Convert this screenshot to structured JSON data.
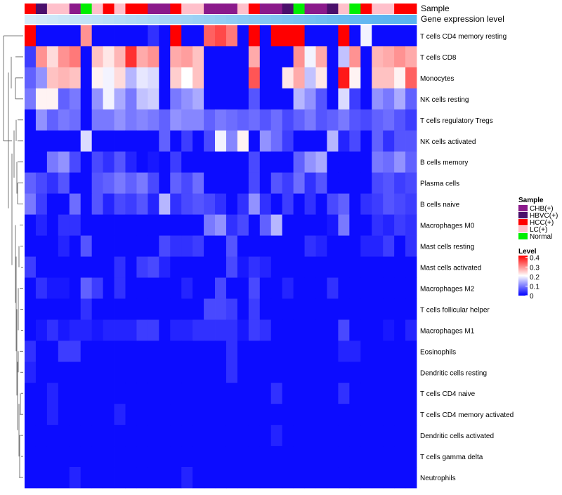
{
  "chart_data": {
    "type": "heatmap",
    "title": "",
    "annotation_tracks": [
      "Sample",
      "Gene expression level"
    ],
    "legend_sample": {
      "title": "Sample",
      "entries": [
        {
          "label": "CHB(+)",
          "color": "#8b1a8b"
        },
        {
          "label": "HBVC(+)",
          "color": "#4b0f6b"
        },
        {
          "label": "HCC(+)",
          "color": "#ff0000"
        },
        {
          "label": "LC(+)",
          "color": "#ffc0cb"
        },
        {
          "label": "Normal",
          "color": "#00ee00"
        }
      ]
    },
    "legend_level": {
      "title": "Level",
      "ticks": [
        "0.4",
        "0.3",
        "0.2",
        "0.1",
        "0"
      ],
      "tick_values": [
        0.4,
        0.3,
        0.2,
        0.1,
        0
      ],
      "range": [
        0,
        0.42
      ],
      "colors": [
        "#0000ff",
        "#ffffff",
        "#ff0000"
      ]
    },
    "sample_groups": [
      "HCC(+)",
      "HBVC(+)",
      "LC(+)",
      "LC(+)",
      "CHB(+)",
      "Normal",
      "LC(+)",
      "HCC(+)",
      "LC(+)",
      "HCC(+)",
      "HCC(+)",
      "CHB(+)",
      "CHB(+)",
      "HCC(+)",
      "LC(+)",
      "LC(+)",
      "CHB(+)",
      "CHB(+)",
      "CHB(+)",
      "LC(+)",
      "HCC(+)",
      "CHB(+)",
      "CHB(+)",
      "HBVC(+)",
      "Normal",
      "CHB(+)",
      "CHB(+)",
      "HBVC(+)",
      "LC(+)",
      "Normal",
      "HCC(+)",
      "LC(+)",
      "LC(+)",
      "HCC(+)",
      "HCC(+)"
    ],
    "expression_track": [
      0.05,
      0.08,
      0.11,
      0.14,
      0.17,
      0.2,
      0.23,
      0.26,
      0.29,
      0.32,
      0.35,
      0.38,
      0.41,
      0.44,
      0.47,
      0.5,
      0.53,
      0.56,
      0.59,
      0.62,
      0.65,
      0.68,
      0.71,
      0.74,
      0.77,
      0.8,
      0.83,
      0.86,
      0.89,
      0.92,
      0.95,
      0.97,
      0.98,
      0.99,
      1.0
    ],
    "rows": [
      "T cells CD4 memory resting",
      "T cells CD8",
      "Monocytes",
      "NK cells resting",
      "T cells regulatory  Tregs",
      "NK cells activated",
      "B cells memory",
      "Plasma cells",
      "B cells naive",
      "Macrophages M0",
      "Mast cells resting",
      "Mast cells activated",
      "Macrophages M2",
      "T cells follicular helper",
      "Macrophages M1",
      "Eosinophils",
      "Dendritic cells resting",
      "T cells CD4 naive",
      "T cells CD4 memory activated",
      "Dendritic cells activated",
      "T cells gamma delta",
      "Neutrophils"
    ],
    "values": [
      [
        0.42,
        0.01,
        0.01,
        0.01,
        0.01,
        0.3,
        0.01,
        0.01,
        0.01,
        0.01,
        0.01,
        0.04,
        0.01,
        0.42,
        0.01,
        0.01,
        0.34,
        0.36,
        0.32,
        0.01,
        0.42,
        0.01,
        0.42,
        0.42,
        0.42,
        0.01,
        0.01,
        0.01,
        0.42,
        0.01,
        0.2,
        0.01,
        0.01,
        0.01,
        0.01
      ],
      [
        0.05,
        0.3,
        0.24,
        0.3,
        0.32,
        0.01,
        0.26,
        0.23,
        0.27,
        0.38,
        0.28,
        0.3,
        0.01,
        0.28,
        0.29,
        0.26,
        0.01,
        0.01,
        0.01,
        0.01,
        0.28,
        0.01,
        0.01,
        0.01,
        0.3,
        0.2,
        0.28,
        0.01,
        0.16,
        0.3,
        0.01,
        0.27,
        0.28,
        0.3,
        0.28
      ],
      [
        0.08,
        0.12,
        0.26,
        0.27,
        0.26,
        0.01,
        0.22,
        0.2,
        0.24,
        0.15,
        0.19,
        0.18,
        0.01,
        0.25,
        0.21,
        0.26,
        0.01,
        0.01,
        0.01,
        0.01,
        0.35,
        0.01,
        0.01,
        0.23,
        0.28,
        0.16,
        0.23,
        0.01,
        0.4,
        0.22,
        0.01,
        0.26,
        0.26,
        0.22,
        0.34
      ],
      [
        0.1,
        0.22,
        0.22,
        0.08,
        0.1,
        0.01,
        0.12,
        0.2,
        0.14,
        0.1,
        0.16,
        0.17,
        0.01,
        0.1,
        0.12,
        0.14,
        0.01,
        0.01,
        0.01,
        0.01,
        0.07,
        0.01,
        0.01,
        0.01,
        0.15,
        0.12,
        0.07,
        0.01,
        0.18,
        0.05,
        0.01,
        0.12,
        0.1,
        0.14,
        0.08
      ],
      [
        0.01,
        0.12,
        0.08,
        0.1,
        0.09,
        0.01,
        0.1,
        0.1,
        0.12,
        0.1,
        0.11,
        0.1,
        0.08,
        0.12,
        0.11,
        0.11,
        0.08,
        0.1,
        0.09,
        0.08,
        0.09,
        0.07,
        0.09,
        0.06,
        0.08,
        0.1,
        0.07,
        0.08,
        0.1,
        0.07,
        0.06,
        0.08,
        0.09,
        0.07,
        0.05
      ],
      [
        0.01,
        0.01,
        0.01,
        0.01,
        0.01,
        0.18,
        0.01,
        0.01,
        0.01,
        0.01,
        0.01,
        0.01,
        0.08,
        0.01,
        0.05,
        0.01,
        0.06,
        0.2,
        0.11,
        0.22,
        0.01,
        0.12,
        0.09,
        0.05,
        0.01,
        0.01,
        0.01,
        0.15,
        0.03,
        0.06,
        0.01,
        0.08,
        0.04,
        0.07,
        0.07
      ],
      [
        0.01,
        0.01,
        0.1,
        0.12,
        0.06,
        0.01,
        0.06,
        0.04,
        0.07,
        0.03,
        0.01,
        0.02,
        0.01,
        0.05,
        0.01,
        0.01,
        0.01,
        0.01,
        0.01,
        0.01,
        0.06,
        0.01,
        0.01,
        0.01,
        0.08,
        0.12,
        0.14,
        0.01,
        0.01,
        0.01,
        0.01,
        0.1,
        0.09,
        0.12,
        0.08
      ],
      [
        0.08,
        0.06,
        0.04,
        0.07,
        0.01,
        0.01,
        0.07,
        0.08,
        0.1,
        0.08,
        0.1,
        0.06,
        0.01,
        0.08,
        0.06,
        0.09,
        0.01,
        0.01,
        0.01,
        0.01,
        0.06,
        0.01,
        0.07,
        0.05,
        0.09,
        0.04,
        0.07,
        0.01,
        0.01,
        0.01,
        0.01,
        0.06,
        0.07,
        0.05,
        0.06
      ],
      [
        0.1,
        0.05,
        0.01,
        0.01,
        0.09,
        0.01,
        0.07,
        0.03,
        0.06,
        0.05,
        0.07,
        0.03,
        0.15,
        0.04,
        0.06,
        0.07,
        0.06,
        0.04,
        0.01,
        0.04,
        0.12,
        0.04,
        0.01,
        0.05,
        0.01,
        0.04,
        0.01,
        0.06,
        0.08,
        0.01,
        0.04,
        0.05,
        0.07,
        0.06,
        0.05
      ],
      [
        0.01,
        0.03,
        0.01,
        0.04,
        0.04,
        0.01,
        0.01,
        0.01,
        0.01,
        0.01,
        0.01,
        0.01,
        0.01,
        0.01,
        0.01,
        0.01,
        0.1,
        0.12,
        0.04,
        0.06,
        0.01,
        0.08,
        0.15,
        0.01,
        0.01,
        0.01,
        0.01,
        0.02,
        0.1,
        0.01,
        0.01,
        0.04,
        0.03,
        0.05,
        0.04
      ],
      [
        0.01,
        0.01,
        0.01,
        0.03,
        0.01,
        0.07,
        0.01,
        0.01,
        0.01,
        0.01,
        0.01,
        0.01,
        0.06,
        0.04,
        0.04,
        0.05,
        0.01,
        0.01,
        0.07,
        0.01,
        0.01,
        0.01,
        0.01,
        0.01,
        0.01,
        0.04,
        0.03,
        0.01,
        0.01,
        0.01,
        0.03,
        0.03,
        0.05,
        0.01,
        0.04
      ],
      [
        0.05,
        0.01,
        0.01,
        0.01,
        0.01,
        0.01,
        0.01,
        0.01,
        0.04,
        0.01,
        0.05,
        0.06,
        0.03,
        0.01,
        0.01,
        0.01,
        0.01,
        0.01,
        0.06,
        0.02,
        0.04,
        0.03,
        0.01,
        0.01,
        0.01,
        0.01,
        0.01,
        0.01,
        0.01,
        0.01,
        0.01,
        0.01,
        0.01,
        0.01,
        0.01
      ],
      [
        0.01,
        0.04,
        0.02,
        0.02,
        0.01,
        0.08,
        0.05,
        0.01,
        0.04,
        0.01,
        0.01,
        0.01,
        0.01,
        0.01,
        0.03,
        0.01,
        0.01,
        0.06,
        0.01,
        0.01,
        0.06,
        0.01,
        0.01,
        0.03,
        0.01,
        0.01,
        0.01,
        0.04,
        0.01,
        0.01,
        0.01,
        0.01,
        0.01,
        0.01,
        0.01
      ],
      [
        0.01,
        0.01,
        0.01,
        0.01,
        0.01,
        0.04,
        0.01,
        0.01,
        0.01,
        0.01,
        0.01,
        0.01,
        0.01,
        0.01,
        0.01,
        0.01,
        0.06,
        0.06,
        0.05,
        0.01,
        0.05,
        0.01,
        0.01,
        0.01,
        0.01,
        0.01,
        0.01,
        0.01,
        0.01,
        0.01,
        0.01,
        0.01,
        0.01,
        0.01,
        0.01
      ],
      [
        0.01,
        0.02,
        0.04,
        0.02,
        0.03,
        0.03,
        0.02,
        0.03,
        0.03,
        0.03,
        0.05,
        0.05,
        0.01,
        0.03,
        0.03,
        0.04,
        0.04,
        0.04,
        0.04,
        0.02,
        0.05,
        0.04,
        0.01,
        0.01,
        0.01,
        0.01,
        0.01,
        0.01,
        0.06,
        0.01,
        0.01,
        0.01,
        0.02,
        0.01,
        0.03
      ],
      [
        0.04,
        0.01,
        0.01,
        0.05,
        0.05,
        0.01,
        0.01,
        0.01,
        0.01,
        0.01,
        0.01,
        0.01,
        0.01,
        0.01,
        0.01,
        0.01,
        0.01,
        0.01,
        0.04,
        0.01,
        0.01,
        0.01,
        0.01,
        0.01,
        0.01,
        0.01,
        0.01,
        0.01,
        0.03,
        0.03,
        0.01,
        0.01,
        0.01,
        0.01,
        0.01
      ],
      [
        0.03,
        0.01,
        0.01,
        0.01,
        0.01,
        0.01,
        0.01,
        0.01,
        0.01,
        0.01,
        0.01,
        0.01,
        0.01,
        0.01,
        0.01,
        0.01,
        0.01,
        0.01,
        0.04,
        0.01,
        0.01,
        0.01,
        0.01,
        0.01,
        0.01,
        0.01,
        0.01,
        0.01,
        0.01,
        0.01,
        0.01,
        0.01,
        0.01,
        0.01,
        0.01
      ],
      [
        0.01,
        0.01,
        0.03,
        0.01,
        0.01,
        0.01,
        0.01,
        0.01,
        0.01,
        0.01,
        0.01,
        0.01,
        0.01,
        0.01,
        0.01,
        0.01,
        0.01,
        0.01,
        0.01,
        0.01,
        0.01,
        0.01,
        0.04,
        0.01,
        0.01,
        0.01,
        0.01,
        0.01,
        0.04,
        0.01,
        0.01,
        0.01,
        0.01,
        0.01,
        0.01
      ],
      [
        0.01,
        0.01,
        0.03,
        0.01,
        0.01,
        0.01,
        0.01,
        0.01,
        0.03,
        0.01,
        0.01,
        0.01,
        0.01,
        0.01,
        0.01,
        0.01,
        0.01,
        0.01,
        0.01,
        0.01,
        0.01,
        0.01,
        0.01,
        0.01,
        0.01,
        0.01,
        0.01,
        0.01,
        0.01,
        0.01,
        0.01,
        0.01,
        0.01,
        0.01,
        0.01
      ],
      [
        0.01,
        0.01,
        0.01,
        0.01,
        0.01,
        0.01,
        0.01,
        0.01,
        0.01,
        0.01,
        0.01,
        0.01,
        0.01,
        0.01,
        0.01,
        0.01,
        0.01,
        0.01,
        0.01,
        0.01,
        0.01,
        0.01,
        0.03,
        0.01,
        0.01,
        0.01,
        0.01,
        0.01,
        0.01,
        0.01,
        0.01,
        0.01,
        0.01,
        0.01,
        0.01
      ],
      [
        0.01,
        0.01,
        0.01,
        0.01,
        0.01,
        0.01,
        0.01,
        0.01,
        0.01,
        0.01,
        0.01,
        0.01,
        0.01,
        0.01,
        0.01,
        0.01,
        0.01,
        0.01,
        0.01,
        0.01,
        0.01,
        0.01,
        0.01,
        0.01,
        0.01,
        0.01,
        0.01,
        0.01,
        0.01,
        0.01,
        0.01,
        0.01,
        0.01,
        0.01,
        0.01
      ],
      [
        0.01,
        0.01,
        0.01,
        0.01,
        0.03,
        0.01,
        0.01,
        0.01,
        0.01,
        0.01,
        0.01,
        0.01,
        0.01,
        0.01,
        0.03,
        0.01,
        0.01,
        0.01,
        0.01,
        0.01,
        0.01,
        0.01,
        0.01,
        0.01,
        0.01,
        0.01,
        0.01,
        0.01,
        0.01,
        0.01,
        0.01,
        0.01,
        0.01,
        0.01,
        0.01
      ]
    ]
  }
}
